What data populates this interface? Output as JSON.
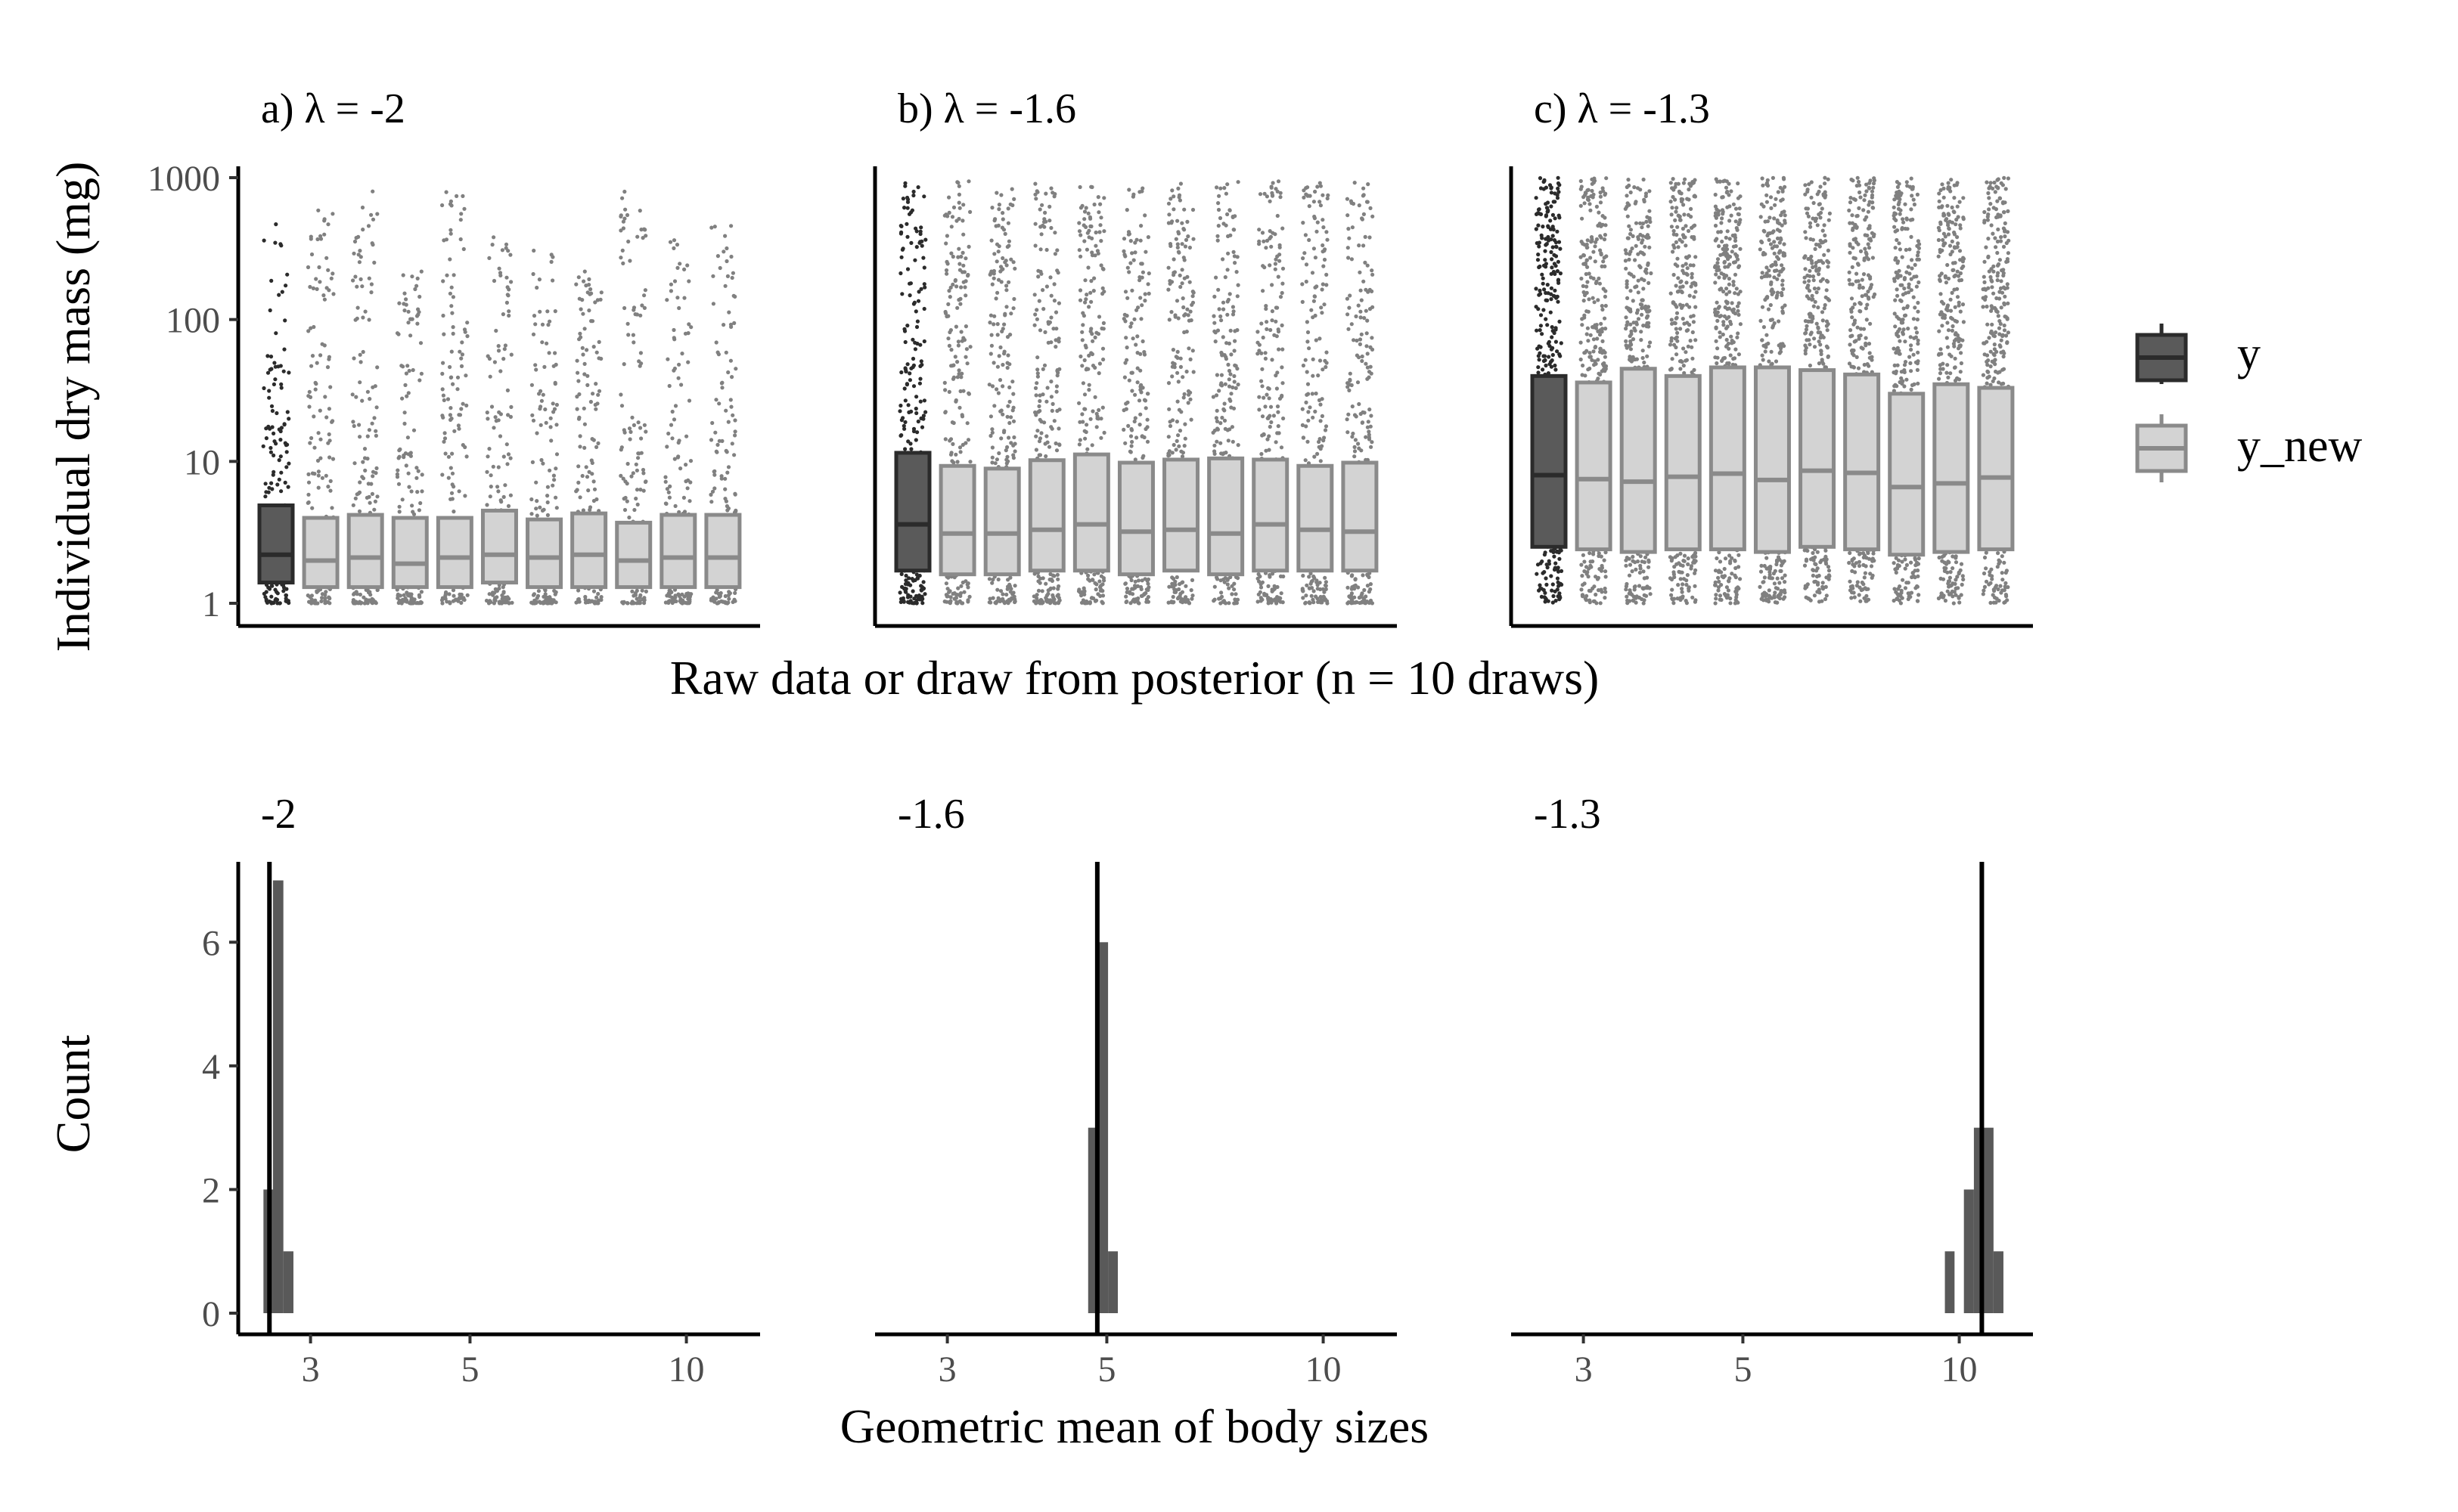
{
  "y_axis_label_top": "Individual dry mass (mg)",
  "x_axis_label_top": "Raw data or draw from posterior (n = 10 draws)",
  "y_axis_label_bottom": "Count",
  "x_axis_label_bottom": "Geometric mean of body sizes",
  "legend": {
    "items": [
      {
        "label": "y",
        "fill": "#5a5a5a",
        "stroke": "#2b2b2b"
      },
      {
        "label": "y_new",
        "fill": "#d3d3d3",
        "stroke": "#8a8a8a"
      }
    ]
  },
  "colors": {
    "y_points": "#2b2b2b",
    "y_new_points": "#808080",
    "hist_bars": "#595959",
    "vline": "#000000",
    "tick_text": "#4d4d4d"
  },
  "chart_data": [
    {
      "type": "boxplot",
      "title": "a) λ = -2",
      "y_scale": "log10",
      "ylim": [
        1,
        1000
      ],
      "y_ticks": [
        1,
        10,
        100,
        1000
      ],
      "y_tick_labels": [
        "1",
        "10",
        "100",
        "1000"
      ],
      "groups": [
        "y",
        "y_new",
        "y_new",
        "y_new",
        "y_new",
        "y_new",
        "y_new",
        "y_new",
        "y_new",
        "y_new",
        "y_new"
      ],
      "boxes": [
        {
          "group": "y",
          "q1": 1.4,
          "median": 2.2,
          "q3": 4.9,
          "max": 500
        },
        {
          "group": "y_new",
          "q1": 1.3,
          "median": 2.0,
          "q3": 4.0,
          "max": 650
        },
        {
          "group": "y_new",
          "q1": 1.3,
          "median": 2.1,
          "q3": 4.2,
          "max": 850
        },
        {
          "group": "y_new",
          "q1": 1.3,
          "median": 1.9,
          "q3": 4.0,
          "max": 320
        },
        {
          "group": "y_new",
          "q1": 1.3,
          "median": 2.1,
          "q3": 4.0,
          "max": 800
        },
        {
          "group": "y_new",
          "q1": 1.4,
          "median": 2.2,
          "q3": 4.5,
          "max": 450
        },
        {
          "group": "y_new",
          "q1": 1.3,
          "median": 2.1,
          "q3": 3.9,
          "max": 350
        },
        {
          "group": "y_new",
          "q1": 1.3,
          "median": 2.2,
          "q3": 4.3,
          "max": 230
        },
        {
          "group": "y_new",
          "q1": 1.3,
          "median": 2.0,
          "q3": 3.7,
          "max": 800
        },
        {
          "group": "y_new",
          "q1": 1.3,
          "median": 2.1,
          "q3": 4.2,
          "max": 480
        },
        {
          "group": "y_new",
          "q1": 1.3,
          "median": 2.1,
          "q3": 4.2,
          "max": 470
        }
      ]
    },
    {
      "type": "boxplot",
      "title": "b) λ = -1.6",
      "y_scale": "log10",
      "ylim": [
        1,
        1000
      ],
      "groups": [
        "y",
        "y_new",
        "y_new",
        "y_new",
        "y_new",
        "y_new",
        "y_new",
        "y_new",
        "y_new",
        "y_new",
        "y_new"
      ],
      "boxes": [
        {
          "group": "y",
          "q1": 1.7,
          "median": 3.6,
          "q3": 11.5,
          "max": 950
        },
        {
          "group": "y_new",
          "q1": 1.6,
          "median": 3.1,
          "q3": 9.3,
          "max": 950
        },
        {
          "group": "y_new",
          "q1": 1.6,
          "median": 3.1,
          "q3": 8.9,
          "max": 950
        },
        {
          "group": "y_new",
          "q1": 1.7,
          "median": 3.3,
          "q3": 10.2,
          "max": 950
        },
        {
          "group": "y_new",
          "q1": 1.7,
          "median": 3.6,
          "q3": 11.2,
          "max": 950
        },
        {
          "group": "y_new",
          "q1": 1.6,
          "median": 3.2,
          "q3": 9.8,
          "max": 950
        },
        {
          "group": "y_new",
          "q1": 1.7,
          "median": 3.3,
          "q3": 10.3,
          "max": 950
        },
        {
          "group": "y_new",
          "q1": 1.6,
          "median": 3.1,
          "q3": 10.5,
          "max": 950
        },
        {
          "group": "y_new",
          "q1": 1.7,
          "median": 3.6,
          "q3": 10.3,
          "max": 950
        },
        {
          "group": "y_new",
          "q1": 1.7,
          "median": 3.3,
          "q3": 9.3,
          "max": 950
        },
        {
          "group": "y_new",
          "q1": 1.7,
          "median": 3.2,
          "q3": 9.8,
          "max": 950
        }
      ]
    },
    {
      "type": "boxplot",
      "title": "c) λ = -1.3",
      "y_scale": "log10",
      "ylim": [
        1,
        1000
      ],
      "groups": [
        "y",
        "y_new",
        "y_new",
        "y_new",
        "y_new",
        "y_new",
        "y_new",
        "y_new",
        "y_new",
        "y_new",
        "y_new"
      ],
      "boxes": [
        {
          "group": "y",
          "q1": 2.5,
          "median": 8.0,
          "q3": 40,
          "max": 1000
        },
        {
          "group": "y_new",
          "q1": 2.4,
          "median": 7.5,
          "q3": 36,
          "max": 1000
        },
        {
          "group": "y_new",
          "q1": 2.3,
          "median": 7.2,
          "q3": 45,
          "max": 1000
        },
        {
          "group": "y_new",
          "q1": 2.4,
          "median": 7.8,
          "q3": 40,
          "max": 1000
        },
        {
          "group": "y_new",
          "q1": 2.4,
          "median": 8.2,
          "q3": 46,
          "max": 1000
        },
        {
          "group": "y_new",
          "q1": 2.3,
          "median": 7.4,
          "q3": 46,
          "max": 1000
        },
        {
          "group": "y_new",
          "q1": 2.5,
          "median": 8.6,
          "q3": 44,
          "max": 1000
        },
        {
          "group": "y_new",
          "q1": 2.4,
          "median": 8.3,
          "q3": 41,
          "max": 1000
        },
        {
          "group": "y_new",
          "q1": 2.2,
          "median": 6.6,
          "q3": 30,
          "max": 1000
        },
        {
          "group": "y_new",
          "q1": 2.3,
          "median": 7.0,
          "q3": 35,
          "max": 1000
        },
        {
          "group": "y_new",
          "q1": 2.4,
          "median": 7.7,
          "q3": 33,
          "max": 1000
        }
      ]
    },
    {
      "type": "bar",
      "title": "-2",
      "x_scale": "log10",
      "x_ticks": [
        3,
        5,
        10
      ],
      "x_tick_labels": [
        "3",
        "5",
        "10"
      ],
      "ylim": [
        0,
        7.3
      ],
      "y_ticks": [
        0,
        2,
        4,
        6
      ],
      "y_tick_labels": [
        "0",
        "2",
        "4",
        "6"
      ],
      "bins": [
        {
          "x0": 2.58,
          "x1": 2.66,
          "count": 2
        },
        {
          "x0": 2.66,
          "x1": 2.75,
          "count": 7
        },
        {
          "x0": 2.75,
          "x1": 2.84,
          "count": 1
        }
      ],
      "observed_value": 2.63
    },
    {
      "type": "bar",
      "title": "-1.6",
      "x_scale": "log10",
      "x_ticks": [
        3,
        5,
        10
      ],
      "x_tick_labels": [
        "3",
        "5",
        "10"
      ],
      "ylim": [
        0,
        7.3
      ],
      "bins": [
        {
          "x0": 4.71,
          "x1": 4.86,
          "count": 3
        },
        {
          "x0": 4.86,
          "x1": 5.02,
          "count": 6
        },
        {
          "x0": 5.02,
          "x1": 5.18,
          "count": 1
        }
      ],
      "observed_value": 4.85
    },
    {
      "type": "bar",
      "title": "-1.3",
      "x_scale": "log10",
      "x_ticks": [
        3,
        5,
        10
      ],
      "x_tick_labels": [
        "3",
        "5",
        "10"
      ],
      "ylim": [
        0,
        7.3
      ],
      "bins": [
        {
          "x0": 9.55,
          "x1": 9.85,
          "count": 1
        },
        {
          "x0": 10.15,
          "x1": 10.48,
          "count": 2
        },
        {
          "x0": 10.48,
          "x1": 10.82,
          "count": 3
        },
        {
          "x0": 10.82,
          "x1": 11.16,
          "count": 3
        },
        {
          "x0": 11.16,
          "x1": 11.52,
          "count": 1
        }
      ],
      "observed_value": 10.75
    }
  ]
}
